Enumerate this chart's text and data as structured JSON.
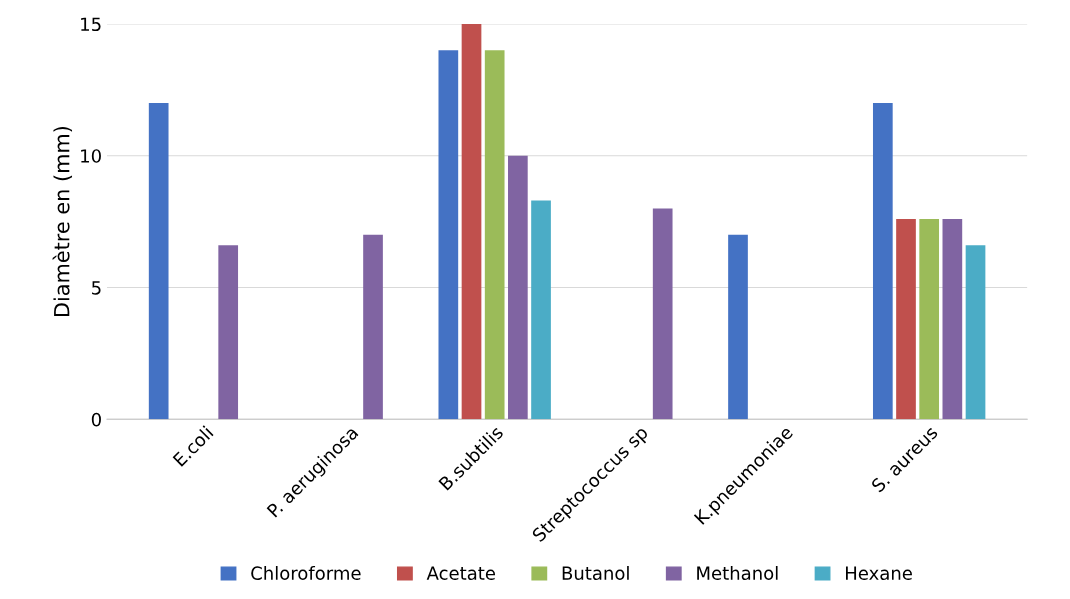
{
  "chart_data": {
    "type": "bar",
    "ylabel": "Diamètre en (mm)",
    "categories": [
      "E.coli",
      "P. aeruginosa",
      "B.subtilis",
      "Streptococcus sp",
      "K.pneumoniae",
      "S. aureus"
    ],
    "series": [
      {
        "name": "Chloroforme",
        "color": "#4472c4",
        "values": [
          12,
          0,
          14,
          0,
          7,
          12
        ]
      },
      {
        "name": "Acetate",
        "color": "#c0504d",
        "values": [
          0,
          0,
          15,
          0,
          0,
          7.6
        ]
      },
      {
        "name": "Butanol",
        "color": "#9bbb59",
        "values": [
          0,
          0,
          14,
          0,
          0,
          7.6
        ]
      },
      {
        "name": "Methanol",
        "color": "#8064a2",
        "values": [
          6.6,
          7,
          10,
          8,
          0,
          7.6
        ]
      },
      {
        "name": "Hexane",
        "color": "#4bacc6",
        "values": [
          0,
          0,
          8.3,
          0,
          0,
          6.6
        ]
      }
    ],
    "ylim": [
      0,
      15
    ],
    "yticks": [
      0,
      5,
      10,
      15
    ],
    "grid": "y",
    "legend": "bottom"
  }
}
